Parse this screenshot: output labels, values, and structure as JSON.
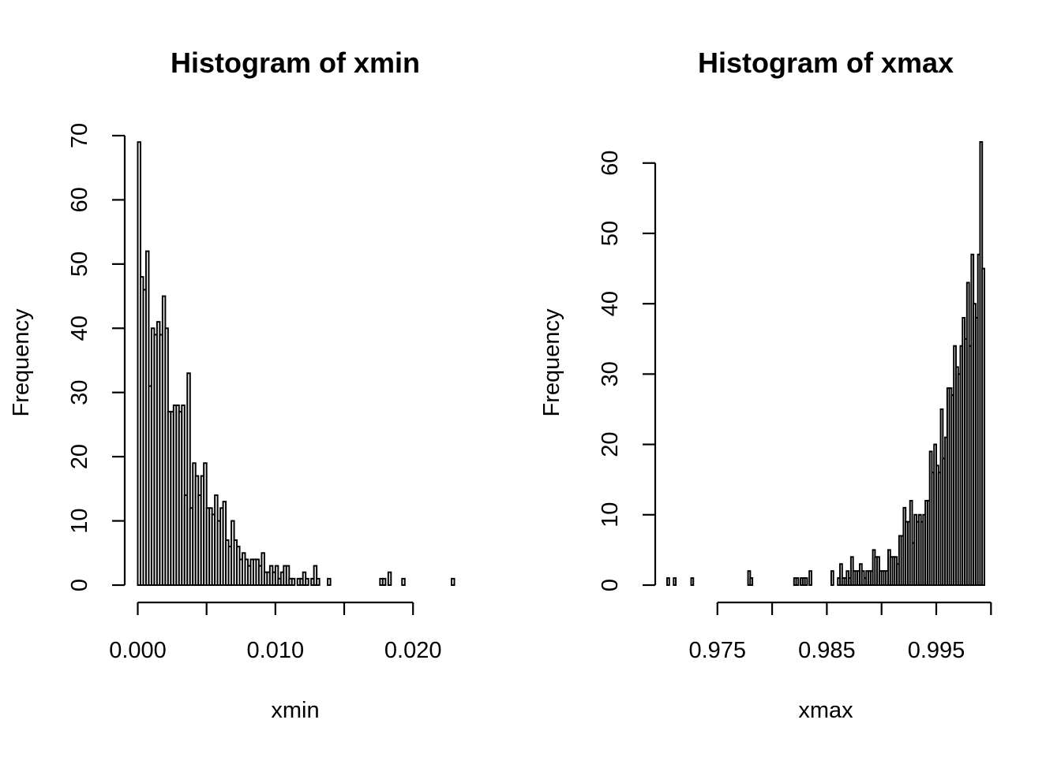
{
  "chart_data": [
    {
      "type": "bar",
      "title": "Histogram of xmin",
      "xlabel": "xmin",
      "ylabel": "Frequency",
      "xlim": [
        0,
        0.023
      ],
      "ylim": [
        0,
        70
      ],
      "bin_start": 0,
      "bin_width": 0.0002,
      "x_ticks": [
        {
          "v": 0,
          "label": "0.000"
        },
        {
          "v": 0.005,
          "label": ""
        },
        {
          "v": 0.01,
          "label": "0.010"
        },
        {
          "v": 0.015,
          "label": ""
        },
        {
          "v": 0.02,
          "label": "0.020"
        }
      ],
      "y_ticks": [
        {
          "v": 0,
          "label": "0"
        },
        {
          "v": 10,
          "label": "10"
        },
        {
          "v": 20,
          "label": "20"
        },
        {
          "v": 30,
          "label": "30"
        },
        {
          "v": 40,
          "label": "40"
        },
        {
          "v": 50,
          "label": "50"
        },
        {
          "v": 60,
          "label": "60"
        },
        {
          "v": 70,
          "label": "70"
        }
      ],
      "values": [
        69,
        48,
        46,
        52,
        31,
        40,
        39,
        41,
        39,
        45,
        40,
        27,
        27,
        28,
        28,
        27,
        28,
        14,
        33,
        12,
        19,
        17,
        14,
        17,
        19,
        12,
        12,
        11,
        14,
        10,
        12,
        13,
        7,
        6,
        10,
        7,
        6,
        4,
        5,
        4,
        3,
        4,
        4,
        4,
        3,
        5,
        2,
        2,
        3,
        2,
        3,
        1,
        2,
        3,
        3,
        1,
        1,
        0,
        1,
        1,
        2,
        1,
        0,
        1,
        3,
        1,
        0,
        0,
        0,
        1,
        0,
        0,
        0,
        0,
        0,
        0,
        0,
        0,
        0,
        0,
        0,
        0,
        0,
        0,
        0,
        0,
        0,
        0,
        1,
        1,
        0,
        2,
        0,
        0,
        0,
        0,
        1,
        0,
        0,
        0,
        0,
        0,
        0,
        0,
        0,
        0,
        0,
        0,
        0,
        0,
        0,
        0,
        0,
        0,
        1
      ]
    },
    {
      "type": "bar",
      "title": "Histogram of xmax",
      "xlabel": "xmax",
      "ylabel": "Frequency",
      "xlim": [
        0.97,
        1.0
      ],
      "ylim": [
        0,
        63
      ],
      "bin_start": 0.9704,
      "bin_width": 0.0002,
      "x_ticks": [
        {
          "v": 0.975,
          "label": "0.975"
        },
        {
          "v": 0.98,
          "label": ""
        },
        {
          "v": 0.985,
          "label": "0.985"
        },
        {
          "v": 0.99,
          "label": ""
        },
        {
          "v": 0.995,
          "label": "0.995"
        },
        {
          "v": 1.0,
          "label": ""
        }
      ],
      "y_ticks": [
        {
          "v": 0,
          "label": "0"
        },
        {
          "v": 10,
          "label": "10"
        },
        {
          "v": 20,
          "label": "20"
        },
        {
          "v": 30,
          "label": "30"
        },
        {
          "v": 40,
          "label": "40"
        },
        {
          "v": 50,
          "label": "50"
        },
        {
          "v": 60,
          "label": "60"
        }
      ],
      "values": [
        1,
        0,
        0,
        1,
        0,
        0,
        0,
        0,
        0,
        0,
        0,
        1,
        0,
        0,
        0,
        0,
        0,
        0,
        0,
        0,
        0,
        0,
        0,
        0,
        0,
        0,
        0,
        0,
        0,
        0,
        0,
        0,
        0,
        0,
        0,
        0,
        0,
        2,
        1,
        0,
        0,
        0,
        0,
        0,
        0,
        0,
        0,
        0,
        0,
        0,
        0,
        0,
        0,
        0,
        0,
        0,
        0,
        0,
        1,
        1,
        0,
        1,
        1,
        1,
        0,
        2,
        0,
        0,
        0,
        0,
        0,
        0,
        0,
        0,
        0,
        2,
        0,
        0,
        1,
        3,
        1,
        1,
        2,
        1,
        4,
        2,
        2,
        2,
        3,
        2,
        1,
        2,
        2,
        2,
        5,
        4,
        4,
        2,
        2,
        2,
        2,
        5,
        4,
        4,
        4,
        3,
        7,
        7,
        11,
        9,
        9,
        12,
        6,
        10,
        9,
        10,
        9,
        10,
        12,
        12,
        19,
        16,
        20,
        17,
        16,
        25,
        18,
        21,
        28,
        28,
        27,
        34,
        31,
        30,
        34,
        38,
        35,
        43,
        34,
        47,
        40,
        38,
        47,
        63,
        45
      ]
    }
  ]
}
